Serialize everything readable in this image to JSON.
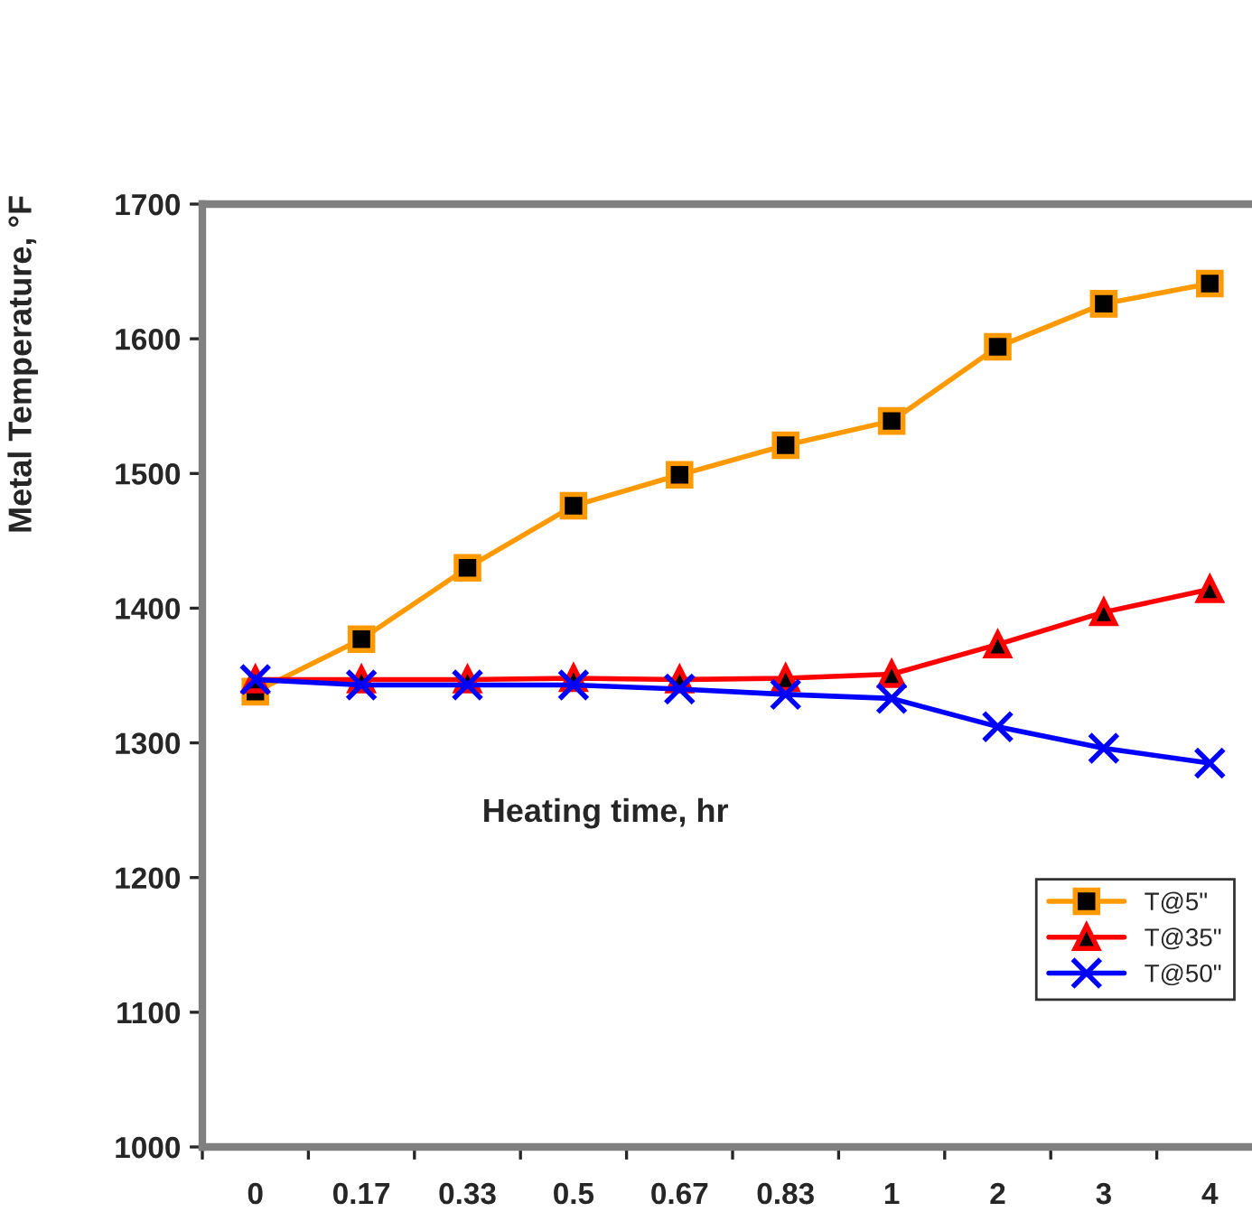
{
  "chart_data": {
    "type": "line",
    "xlabel": "Heating time, hr",
    "ylabel": "Metal Temperature, °F",
    "categories": [
      "0",
      "0.17",
      "0.33",
      "0.5",
      "0.67",
      "0.83",
      "1",
      "2",
      "3",
      "4"
    ],
    "series": [
      {
        "name": "T@5\"",
        "color": "#ff9900",
        "marker": "square",
        "values": [
          1338,
          1377,
          1430,
          1476,
          1499,
          1521,
          1539,
          1594,
          1626,
          1641
        ]
      },
      {
        "name": "T@35\"",
        "color": "#ff0000",
        "marker": "triangle",
        "values": [
          1347,
          1347,
          1347,
          1348,
          1347,
          1348,
          1351,
          1373,
          1397,
          1414
        ]
      },
      {
        "name": "T@50\"",
        "color": "#0000ff",
        "marker": "cross",
        "values": [
          1347,
          1343,
          1343,
          1343,
          1340,
          1336,
          1333,
          1312,
          1296,
          1285
        ]
      }
    ],
    "ylim": [
      1000,
      1700
    ],
    "yticks": [
      1000,
      1100,
      1200,
      1300,
      1400,
      1500,
      1600,
      1700
    ],
    "grid": false,
    "legend": "right",
    "line_style": "solid"
  }
}
